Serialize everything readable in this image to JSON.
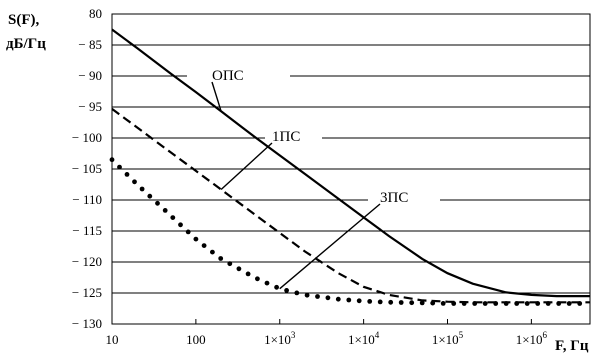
{
  "chart_data": {
    "type": "line",
    "x_scale": "log",
    "x_range": [
      10,
      5000000
    ],
    "y_range": [
      -130,
      -80
    ],
    "y_ticks": [
      -80,
      -85,
      -90,
      -95,
      -100,
      -105,
      -110,
      -115,
      -120,
      -125,
      -130
    ],
    "y_tick_labels": [
      "80",
      "− 85",
      "− 90",
      "− 95",
      "− 100",
      "− 105",
      "− 110",
      "− 115",
      "− 120",
      "− 125",
      "− 130"
    ],
    "x_ticks": [
      10,
      100,
      1000,
      10000,
      100000,
      1000000
    ],
    "x_tick_labels": [
      {
        "main": "10",
        "sup": ""
      },
      {
        "main": "100",
        "sup": ""
      },
      {
        "main": "1×10",
        "sup": "3"
      },
      {
        "main": "1×10",
        "sup": "4"
      },
      {
        "main": "1×10",
        "sup": "5"
      },
      {
        "main": "1×10",
        "sup": "6"
      }
    ],
    "ylabel_line1": "S(F),",
    "ylabel_line2": "дБ/Гц",
    "xlabel": "F, Гц",
    "grid": "horizontal",
    "series": [
      {
        "name": "ОПС",
        "style": "solid",
        "x": [
          10,
          20,
          50,
          100,
          200,
          500,
          1000,
          2000,
          5000,
          10000,
          20000,
          50000,
          100000,
          200000,
          500000,
          1000000,
          2000000,
          5000000
        ],
        "y": [
          -82.5,
          -85.5,
          -89.6,
          -92.6,
          -95.7,
          -99.8,
          -102.8,
          -105.8,
          -109.8,
          -112.8,
          -115.8,
          -119.5,
          -121.8,
          -123.5,
          -124.9,
          -125.3,
          -125.5,
          -125.5
        ]
      },
      {
        "name": "1ПС",
        "style": "dashed",
        "x": [
          10,
          20,
          50,
          100,
          200,
          500,
          1000,
          2000,
          5000,
          10000,
          20000,
          50000,
          100000,
          200000,
          500000,
          1000000,
          2000000,
          5000000
        ],
        "y": [
          -95.3,
          -98.3,
          -102.3,
          -105.3,
          -108.3,
          -112.3,
          -115.3,
          -118.3,
          -121.8,
          -124.0,
          -125.3,
          -126.2,
          -126.4,
          -126.5,
          -126.5,
          -126.5,
          -126.5,
          -126.5
        ]
      },
      {
        "name": "3ПС",
        "style": "dotted",
        "x": [
          10,
          20,
          50,
          100,
          200,
          500,
          1000,
          2000,
          5000,
          10000,
          20000,
          50000,
          100000,
          200000,
          500000,
          1000000,
          2000000,
          5000000
        ],
        "y": [
          -103.5,
          -107.5,
          -112.5,
          -116.3,
          -119.5,
          -122.5,
          -124.3,
          -125.3,
          -126.0,
          -126.3,
          -126.5,
          -126.6,
          -126.7,
          -126.7,
          -126.7,
          -126.7,
          -126.7,
          -126.7
        ]
      }
    ],
    "annotations": [
      {
        "text": "ОПС",
        "series": 0
      },
      {
        "text": "1ПС",
        "series": 1
      },
      {
        "text": "3ПС",
        "series": 2
      }
    ],
    "colors": {
      "line": "#000000",
      "grid": "#000000",
      "background": "#ffffff"
    }
  }
}
